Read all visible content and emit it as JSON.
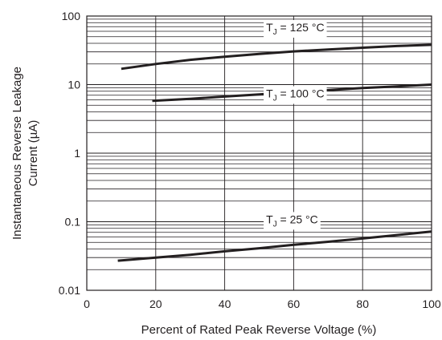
{
  "chart_data": {
    "type": "line",
    "title": "",
    "xlabel": "Percent of Rated Peak Reverse Voltage (%)",
    "ylabel_lines": [
      "Instantaneous Reverse Leakage",
      "Current (µA)"
    ],
    "xlim": [
      0,
      100
    ],
    "ylim": [
      0.01,
      100
    ],
    "yscale": "log",
    "grid": true,
    "x_ticks": [
      "0",
      "20",
      "40",
      "60",
      "80",
      "100"
    ],
    "y_ticks": [
      "0.01",
      "0.1",
      "1",
      "10",
      "100"
    ],
    "line_color": "#231f20",
    "series": [
      {
        "name": "TJ = 125 °C",
        "label_main": "T",
        "label_sub": "J",
        "label_rest": " = 125 °C",
        "label_anchor": [
          52,
          60
        ],
        "x": [
          10,
          20,
          30,
          40,
          50,
          60,
          70,
          80,
          90,
          100
        ],
        "y": [
          17,
          20,
          23,
          25.5,
          28,
          30.5,
          32.5,
          34.5,
          36.5,
          38
        ]
      },
      {
        "name": "TJ = 100 °C",
        "label_main": "T",
        "label_sub": "J",
        "label_rest": " = 100 °C",
        "label_anchor": [
          52,
          6.5
        ],
        "x": [
          19,
          30,
          40,
          50,
          60,
          70,
          80,
          90,
          100
        ],
        "y": [
          5.8,
          6.2,
          6.7,
          7.2,
          7.8,
          8.3,
          8.9,
          9.4,
          10
        ]
      },
      {
        "name": "TJ = 25 °C",
        "label_main": "T",
        "label_sub": "J",
        "label_rest": " = 25 °C",
        "label_anchor": [
          52,
          0.095
        ],
        "x": [
          9,
          20,
          30,
          40,
          50,
          60,
          70,
          80,
          90,
          100
        ],
        "y": [
          0.027,
          0.03,
          0.033,
          0.037,
          0.041,
          0.046,
          0.051,
          0.057,
          0.064,
          0.072
        ]
      }
    ]
  }
}
